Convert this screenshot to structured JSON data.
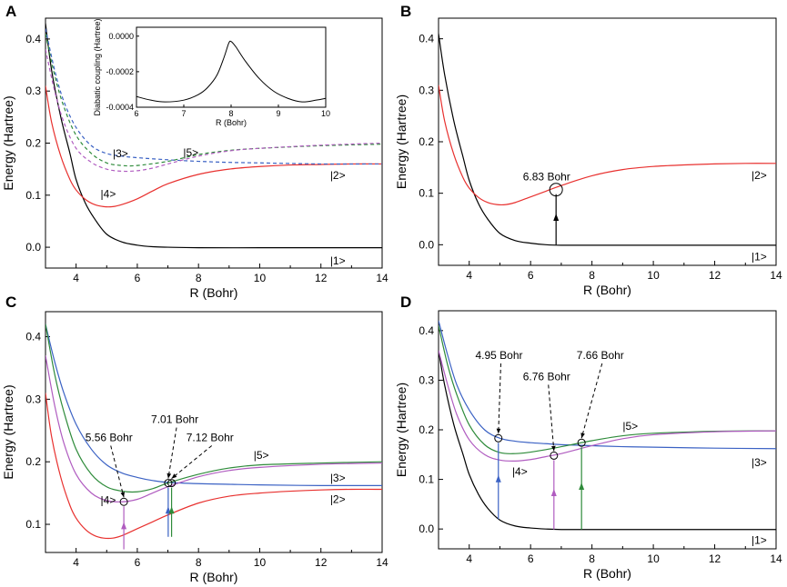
{
  "chart_data": [
    {
      "panel": "A",
      "type": "line",
      "xlabel": "R (Bohr)",
      "ylabel": "Energy (Hartree)",
      "xlim": [
        3,
        14
      ],
      "ylim": [
        -0.04,
        0.44
      ],
      "xticks": [
        4,
        6,
        8,
        10,
        12,
        14
      ],
      "yticks": [
        0.0,
        0.1,
        0.2,
        0.3,
        0.4
      ],
      "series": [
        {
          "name": "|1>",
          "color": "#000000",
          "dash": false,
          "x": [
            3,
            3.2,
            3.5,
            3.8,
            4.0,
            4.3,
            4.6,
            5.0,
            5.5,
            6.0,
            6.5,
            7.0,
            8.0,
            10.0,
            12.0,
            14.0
          ],
          "y": [
            0.43,
            0.34,
            0.25,
            0.18,
            0.13,
            0.085,
            0.055,
            0.025,
            0.01,
            0.004,
            0.001,
            0.0,
            -0.001,
            -0.001,
            -0.001,
            -0.001
          ]
        },
        {
          "name": "|2>",
          "color": "#e8312f",
          "dash": false,
          "x": [
            3,
            3.2,
            3.5,
            3.8,
            4.0,
            4.3,
            4.6,
            4.9,
            5.2,
            5.5,
            6.0,
            6.5,
            7.0,
            8.0,
            9.0,
            10.0,
            11.0,
            12.0,
            13.0,
            14.0
          ],
          "y": [
            0.31,
            0.24,
            0.175,
            0.13,
            0.11,
            0.092,
            0.082,
            0.078,
            0.078,
            0.082,
            0.093,
            0.108,
            0.122,
            0.14,
            0.15,
            0.155,
            0.158,
            0.159,
            0.16,
            0.16
          ]
        },
        {
          "name": "|3>",
          "color": "#3b62c4",
          "dash": true,
          "x": [
            3,
            3.3,
            3.6,
            4.0,
            4.5,
            5.0,
            5.5,
            6.0,
            7.0,
            8.0,
            9.0,
            10.0,
            12.0,
            14.0
          ],
          "y": [
            0.42,
            0.34,
            0.28,
            0.23,
            0.195,
            0.18,
            0.175,
            0.172,
            0.168,
            0.165,
            0.163,
            0.162,
            0.16,
            0.16
          ]
        },
        {
          "name": "|4>",
          "color": "#2e8b3a",
          "dash": true,
          "x": [
            3,
            3.3,
            3.6,
            4.0,
            4.5,
            5.0,
            5.5,
            6.0,
            7.0,
            8.0,
            9.0,
            10.0,
            12.0,
            14.0
          ],
          "y": [
            0.41,
            0.33,
            0.27,
            0.215,
            0.18,
            0.162,
            0.157,
            0.157,
            0.165,
            0.178,
            0.186,
            0.19,
            0.195,
            0.198
          ]
        },
        {
          "name": "|5>",
          "color": "#b05cc0",
          "dash": true,
          "x": [
            3,
            3.3,
            3.6,
            4.0,
            4.5,
            5.0,
            5.5,
            6.0,
            6.5,
            7.0,
            8.0,
            9.0,
            10.0,
            12.0,
            14.0
          ],
          "y": [
            0.38,
            0.3,
            0.24,
            0.19,
            0.163,
            0.15,
            0.146,
            0.147,
            0.152,
            0.16,
            0.175,
            0.185,
            0.19,
            0.196,
            0.2
          ]
        }
      ],
      "state_labels": [
        {
          "text": "|3>",
          "x": 5.2,
          "y": 0.173
        },
        {
          "text": "|5>",
          "x": 7.5,
          "y": 0.175
        },
        {
          "text": "|4>",
          "x": 4.8,
          "y": 0.095
        },
        {
          "text": "|2>",
          "x": 12.3,
          "y": 0.131
        },
        {
          "text": "|1>",
          "x": 12.3,
          "y": -0.033
        }
      ],
      "panel_label": "A",
      "inset": {
        "xlabel": "R (Bohr)",
        "ylabel": "Diabatic coupling (Hartree)",
        "xlim": [
          6,
          10
        ],
        "ylim": [
          -0.0004,
          5e-05
        ],
        "xticks": [
          6,
          7,
          8,
          9,
          10
        ],
        "yticks": [
          "0.0000",
          "-0.0002",
          "-0.0004"
        ],
        "ytick_values": [
          0.0,
          -0.0002,
          -0.0004
        ],
        "x": [
          6.0,
          6.3,
          6.6,
          7.0,
          7.3,
          7.5,
          7.7,
          7.85,
          7.95,
          8.0,
          8.1,
          8.3,
          8.6,
          8.9,
          9.2,
          9.5,
          9.8,
          10.0
        ],
        "y": [
          -0.00034,
          -0.00036,
          -0.00037,
          -0.00036,
          -0.00033,
          -0.00029,
          -0.00022,
          -0.00012,
          -4e-05,
          -3e-05,
          -6e-05,
          -0.00014,
          -0.00024,
          -0.00031,
          -0.00035,
          -0.00037,
          -0.00036,
          -0.00035
        ],
        "color": "#000000"
      }
    },
    {
      "panel": "B",
      "type": "line",
      "xlabel": "R (Bohr)",
      "ylabel": "Energy (Hartree)",
      "xlim": [
        3,
        14
      ],
      "ylim": [
        -0.04,
        0.44
      ],
      "xticks": [
        4,
        6,
        8,
        10,
        12,
        14
      ],
      "yticks": [
        0.0,
        0.1,
        0.2,
        0.3,
        0.4
      ],
      "series": [
        {
          "name": "|1>",
          "color": "#000000",
          "dash": false,
          "x": [
            3,
            3.2,
            3.5,
            3.8,
            4.0,
            4.3,
            4.6,
            5.0,
            5.5,
            6.0,
            6.5,
            7.0,
            8.0,
            10.0,
            12.0,
            14.0
          ],
          "y": [
            0.41,
            0.33,
            0.24,
            0.17,
            0.125,
            0.08,
            0.05,
            0.022,
            0.008,
            0.003,
            0.0,
            -0.001,
            -0.001,
            -0.001,
            -0.001,
            -0.001
          ]
        },
        {
          "name": "|2>",
          "color": "#e8312f",
          "dash": false,
          "x": [
            3,
            3.2,
            3.5,
            3.8,
            4.0,
            4.3,
            4.6,
            4.9,
            5.2,
            5.5,
            6.0,
            6.5,
            7.0,
            8.0,
            9.0,
            10.0,
            11.0,
            12.0,
            13.0,
            14.0
          ],
          "y": [
            0.31,
            0.24,
            0.175,
            0.13,
            0.11,
            0.092,
            0.082,
            0.078,
            0.078,
            0.082,
            0.093,
            0.104,
            0.115,
            0.134,
            0.146,
            0.152,
            0.155,
            0.157,
            0.158,
            0.158
          ]
        }
      ],
      "state_labels": [
        {
          "text": "|2>",
          "x": 13.2,
          "y": 0.128
        },
        {
          "text": "|1>",
          "x": 13.2,
          "y": -0.03
        }
      ],
      "annotations": [
        {
          "text": "6.83 Bohr",
          "x": 6.83,
          "y_circle": 0.107,
          "text_x": 5.75,
          "text_y": 0.125
        }
      ],
      "arrows": [
        {
          "x": 6.83,
          "y0": 0.0,
          "y1": 0.107,
          "color": "#000000"
        }
      ],
      "panel_label": "B"
    },
    {
      "panel": "C",
      "type": "line",
      "xlabel": "R (Bohr)",
      "ylabel": "Energy (Hartree)",
      "xlim": [
        3,
        14
      ],
      "ylim": [
        0.055,
        0.44
      ],
      "xticks": [
        4,
        6,
        8,
        10,
        12,
        14
      ],
      "yticks": [
        0.1,
        0.2,
        0.3,
        0.4
      ],
      "series": [
        {
          "name": "|2>",
          "color": "#e8312f",
          "dash": false,
          "x": [
            3,
            3.2,
            3.5,
            3.8,
            4.0,
            4.3,
            4.6,
            4.9,
            5.2,
            5.5,
            6.0,
            6.5,
            7.0,
            8.0,
            9.0,
            10.0,
            11.0,
            12.0,
            13.0,
            14.0
          ],
          "y": [
            0.31,
            0.24,
            0.175,
            0.13,
            0.11,
            0.092,
            0.082,
            0.078,
            0.078,
            0.082,
            0.093,
            0.104,
            0.115,
            0.134,
            0.145,
            0.15,
            0.153,
            0.155,
            0.156,
            0.156
          ]
        },
        {
          "name": "|3>",
          "color": "#3b62c4",
          "dash": false,
          "x": [
            3,
            3.3,
            3.6,
            4.0,
            4.5,
            5.0,
            5.5,
            6.0,
            6.5,
            7.0,
            8.0,
            9.0,
            10.0,
            12.0,
            14.0
          ],
          "y": [
            0.42,
            0.36,
            0.31,
            0.26,
            0.22,
            0.195,
            0.182,
            0.175,
            0.17,
            0.167,
            0.165,
            0.164,
            0.163,
            0.162,
            0.162
          ]
        },
        {
          "name": "|4>",
          "color": "#2e8b3a",
          "dash": false,
          "x": [
            3,
            3.3,
            3.6,
            4.0,
            4.5,
            5.0,
            5.5,
            6.0,
            6.5,
            7.0,
            8.0,
            9.0,
            10.0,
            12.0,
            14.0
          ],
          "y": [
            0.42,
            0.34,
            0.28,
            0.22,
            0.18,
            0.16,
            0.153,
            0.152,
            0.157,
            0.166,
            0.18,
            0.19,
            0.195,
            0.198,
            0.2
          ]
        },
        {
          "name": "|5>",
          "color": "#b05cc0",
          "dash": false,
          "x": [
            3,
            3.3,
            3.6,
            4.0,
            4.5,
            5.0,
            5.5,
            6.0,
            6.5,
            7.0,
            8.0,
            9.0,
            10.0,
            12.0,
            14.0
          ],
          "y": [
            0.37,
            0.29,
            0.23,
            0.18,
            0.15,
            0.138,
            0.136,
            0.14,
            0.15,
            0.16,
            0.176,
            0.186,
            0.191,
            0.196,
            0.198
          ]
        }
      ],
      "state_labels": [
        {
          "text": "|5>",
          "x": 9.8,
          "y": 0.205
        },
        {
          "text": "|3>",
          "x": 12.3,
          "y": 0.168
        },
        {
          "text": "|2>",
          "x": 12.3,
          "y": 0.134
        },
        {
          "text": "|4>",
          "x": 4.8,
          "y": 0.133
        }
      ],
      "annotations": [
        {
          "text": "5.56 Bohr",
          "x": 5.56,
          "y_circle": 0.136,
          "text_x": 4.3,
          "text_y": 0.233
        },
        {
          "text": "7.01 Bohr",
          "x": 7.01,
          "y_circle": 0.166,
          "text_x": 6.45,
          "text_y": 0.262
        },
        {
          "text": "7.12 Bohr",
          "x": 7.12,
          "y_circle": 0.166,
          "text_x": 7.6,
          "text_y": 0.233
        }
      ],
      "arrows": [
        {
          "x": 5.56,
          "y0": 0.06,
          "y1": 0.136,
          "color": "#b05cc0"
        },
        {
          "x": 7.01,
          "y0": 0.08,
          "y1": 0.166,
          "color": "#3b62c4"
        },
        {
          "x": 7.12,
          "y0": 0.08,
          "y1": 0.166,
          "color": "#2e8b3a"
        }
      ],
      "panel_label": "C"
    },
    {
      "panel": "D",
      "type": "line",
      "xlabel": "R (Bohr)",
      "ylabel": "Energy (Hartree)",
      "xlim": [
        3,
        14
      ],
      "ylim": [
        -0.04,
        0.44
      ],
      "xticks": [
        4,
        6,
        8,
        10,
        12,
        14
      ],
      "yticks": [
        0.0,
        0.1,
        0.2,
        0.3,
        0.4
      ],
      "series": [
        {
          "name": "|1>",
          "color": "#000000",
          "dash": false,
          "x": [
            3,
            3.2,
            3.5,
            3.8,
            4.0,
            4.3,
            4.6,
            5.0,
            5.5,
            6.0,
            6.5,
            7.0,
            8.0,
            10.0,
            12.0,
            14.0
          ],
          "y": [
            0.36,
            0.29,
            0.21,
            0.15,
            0.11,
            0.07,
            0.042,
            0.018,
            0.006,
            0.002,
            0.0,
            -0.001,
            -0.001,
            -0.001,
            -0.001,
            -0.001
          ]
        },
        {
          "name": "|3>",
          "color": "#3b62c4",
          "dash": false,
          "x": [
            3,
            3.3,
            3.6,
            4.0,
            4.5,
            5.0,
            5.5,
            6.0,
            6.5,
            7.0,
            8.0,
            9.0,
            10.0,
            12.0,
            14.0
          ],
          "y": [
            0.42,
            0.35,
            0.29,
            0.24,
            0.2,
            0.183,
            0.177,
            0.174,
            0.172,
            0.17,
            0.168,
            0.166,
            0.165,
            0.163,
            0.162
          ]
        },
        {
          "name": "|4>",
          "color": "#2e8b3a",
          "dash": false,
          "x": [
            3,
            3.3,
            3.6,
            4.0,
            4.5,
            5.0,
            5.5,
            6.0,
            6.5,
            7.0,
            8.0,
            9.0,
            10.0,
            12.0,
            14.0
          ],
          "y": [
            0.41,
            0.33,
            0.27,
            0.21,
            0.17,
            0.154,
            0.152,
            0.155,
            0.16,
            0.166,
            0.178,
            0.188,
            0.193,
            0.197,
            0.198
          ]
        },
        {
          "name": "|5>",
          "color": "#b05cc0",
          "dash": false,
          "x": [
            3,
            3.3,
            3.6,
            4.0,
            4.5,
            5.0,
            5.5,
            6.0,
            6.5,
            7.0,
            8.0,
            9.0,
            10.0,
            12.0,
            14.0
          ],
          "y": [
            0.36,
            0.29,
            0.23,
            0.18,
            0.15,
            0.139,
            0.137,
            0.14,
            0.146,
            0.152,
            0.168,
            0.182,
            0.19,
            0.196,
            0.198
          ]
        }
      ],
      "state_labels": [
        {
          "text": "|5>",
          "x": 9.0,
          "y": 0.2
        },
        {
          "text": "|3>",
          "x": 13.2,
          "y": 0.127
        },
        {
          "text": "|4>",
          "x": 5.4,
          "y": 0.108
        },
        {
          "text": "|1>",
          "x": 13.2,
          "y": -0.03
        }
      ],
      "annotations": [
        {
          "text": "4.95 Bohr",
          "x": 4.95,
          "y_circle": 0.183,
          "text_x": 4.2,
          "text_y": 0.343
        },
        {
          "text": "6.76 Bohr",
          "x": 6.76,
          "y_circle": 0.148,
          "text_x": 5.75,
          "text_y": 0.3
        },
        {
          "text": "7.66 Bohr",
          "x": 7.66,
          "y_circle": 0.174,
          "text_x": 7.5,
          "text_y": 0.343
        }
      ],
      "arrows": [
        {
          "x": 4.95,
          "y0": 0.02,
          "y1": 0.183,
          "color": "#3b62c4"
        },
        {
          "x": 6.76,
          "y0": -0.001,
          "y1": 0.148,
          "color": "#b05cc0"
        },
        {
          "x": 7.66,
          "y0": -0.001,
          "y1": 0.174,
          "color": "#2e8b3a"
        }
      ],
      "panel_label": "D"
    }
  ]
}
